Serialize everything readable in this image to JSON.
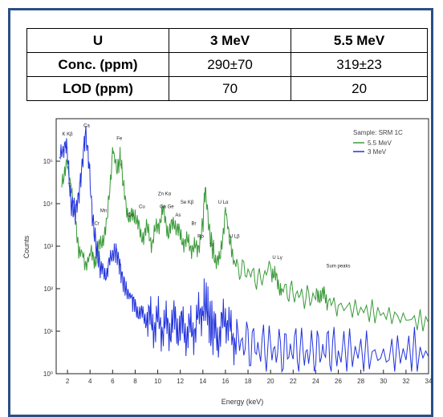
{
  "table": {
    "header": [
      "U",
      "3 MeV",
      "5.5 MeV"
    ],
    "rows": [
      [
        "Conc. (ppm)",
        "290±70",
        "319±23"
      ],
      [
        "LOD (ppm)",
        "70",
        "20"
      ]
    ]
  },
  "chart_data": {
    "type": "line",
    "title": "",
    "xlabel": "Energy (keV)",
    "ylabel": "Counts",
    "xlim": [
      1,
      34
    ],
    "ylim_log10": [
      0,
      6
    ],
    "y_scale": "log",
    "x_ticks": [
      "2",
      "4",
      "6",
      "8",
      "10",
      "12",
      "14",
      "16",
      "18",
      "20",
      "22",
      "24",
      "26",
      "28",
      "30",
      "32",
      "34"
    ],
    "y_ticks": [
      "10⁰",
      "10¹",
      "10²",
      "10³",
      "10⁴",
      "10⁵"
    ],
    "legend": {
      "title": "Sample: SRM 1C",
      "position": "top-right",
      "entries": [
        "5.5 MeV",
        "3 MeV"
      ]
    },
    "series": [
      {
        "name": "5.5 MeV",
        "color": "#3a9a3a",
        "x": [
          1.5,
          2.0,
          2.4,
          3.0,
          3.6,
          4.0,
          4.5,
          5.0,
          5.5,
          6.0,
          6.4,
          6.7,
          7.0,
          7.5,
          8.0,
          8.5,
          9.0,
          9.5,
          10.0,
          10.5,
          11.0,
          11.5,
          12.0,
          12.5,
          13.0,
          13.5,
          14.0,
          14.2,
          14.6,
          15.0,
          15.5,
          16.0,
          16.4,
          17.0,
          18.0,
          19.0,
          20.0,
          20.5,
          21.0,
          22.0,
          23.0,
          24.0,
          24.5,
          25.0,
          26.0,
          28.0,
          30.0,
          32.0,
          34.0
        ],
        "log10_counts": [
          4.6,
          4.9,
          4.2,
          3.0,
          2.5,
          2.8,
          2.7,
          3.1,
          3.5,
          5.3,
          4.8,
          5.1,
          4.3,
          3.6,
          3.8,
          3.2,
          3.4,
          3.1,
          3.5,
          3.8,
          3.3,
          3.6,
          3.2,
          3.1,
          3.0,
          2.9,
          3.5,
          4.4,
          3.3,
          2.8,
          2.6,
          3.9,
          3.1,
          2.5,
          2.4,
          2.2,
          2.5,
          2.2,
          2.0,
          1.9,
          1.8,
          1.8,
          1.9,
          1.7,
          1.6,
          1.5,
          1.4,
          1.3,
          1.2
        ]
      },
      {
        "name": "3 MeV",
        "color": "#2233dd",
        "x": [
          1.3,
          1.8,
          2.0,
          2.3,
          2.7,
          3.0,
          3.3,
          3.6,
          3.9,
          4.2,
          4.6,
          5.0,
          5.5,
          6.0,
          6.3,
          6.6,
          6.9,
          7.3,
          7.7,
          8.0,
          8.5,
          9.0,
          9.5,
          10.0,
          10.5,
          11.0,
          11.5,
          12.0,
          12.5,
          13.0,
          13.5,
          14.0,
          14.3,
          14.6,
          15.0,
          15.5,
          16.0,
          16.5,
          17.0,
          18.0,
          19.0,
          20.0,
          21.0,
          22.0,
          23.0,
          24.0,
          25.0,
          26.0,
          28.0,
          30.0,
          32.0,
          34.0
        ],
        "log10_counts": [
          5.0,
          5.5,
          5.2,
          4.0,
          3.8,
          4.2,
          4.9,
          5.7,
          5.0,
          3.7,
          2.9,
          2.4,
          2.4,
          2.8,
          2.9,
          2.6,
          2.2,
          1.9,
          1.8,
          1.6,
          1.4,
          1.3,
          1.2,
          1.2,
          1.1,
          1.1,
          1.2,
          1.1,
          1.0,
          1.0,
          1.2,
          1.6,
          1.7,
          1.2,
          1.0,
          0.9,
          1.4,
          0.9,
          0.8,
          0.7,
          0.6,
          0.6,
          0.5,
          0.6,
          0.5,
          0.5,
          0.6,
          0.5,
          0.5,
          0.4,
          0.5,
          0.4
        ]
      }
    ],
    "annotations": [
      {
        "text": "K Kβ",
        "x": 2.0,
        "log10": 5.6
      },
      {
        "text": "Ca",
        "x": 3.7,
        "log10": 5.8
      },
      {
        "text": "Fe",
        "x": 6.6,
        "log10": 5.5
      },
      {
        "text": "Ti",
        "x": 2.2,
        "log10": 4.4
      },
      {
        "text": "Mn",
        "x": 5.2,
        "log10": 3.8
      },
      {
        "text": "Cr",
        "x": 4.6,
        "log10": 3.5
      },
      {
        "text": "Co",
        "x": 7.6,
        "log10": 3.7
      },
      {
        "text": "Cu",
        "x": 8.6,
        "log10": 3.9
      },
      {
        "text": "Zn Kα",
        "x": 10.6,
        "log10": 4.2
      },
      {
        "text": "Ga Ge",
        "x": 10.8,
        "log10": 3.9
      },
      {
        "text": "As",
        "x": 11.8,
        "log10": 3.7
      },
      {
        "text": "Se Kβ",
        "x": 12.6,
        "log10": 4.0
      },
      {
        "text": "Br",
        "x": 13.2,
        "log10": 3.5
      },
      {
        "text": "Rb",
        "x": 13.8,
        "log10": 3.2
      },
      {
        "text": "U Lα",
        "x": 15.8,
        "log10": 4.0
      },
      {
        "text": "U Lβ",
        "x": 16.8,
        "log10": 3.2
      },
      {
        "text": "Sr",
        "x": 14.8,
        "log10": 3.0
      },
      {
        "text": "U Lγ",
        "x": 20.6,
        "log10": 2.7
      },
      {
        "text": "Sum peaks",
        "x": 26.0,
        "log10": 2.5
      }
    ]
  }
}
